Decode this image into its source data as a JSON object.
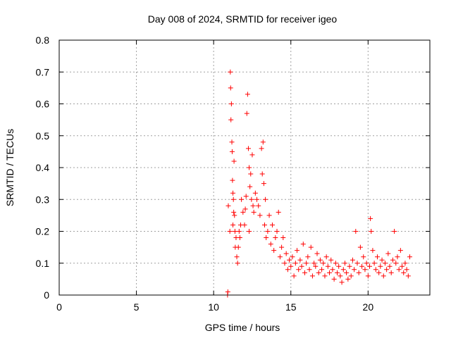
{
  "chart_data": {
    "type": "scatter",
    "title": "Day 008 of 2024, SRMTID for receiver igeo",
    "xlabel": "GPS time / hours",
    "ylabel": "SRMTID / TECUs",
    "xlim": [
      0,
      24
    ],
    "ylim": [
      0,
      0.8
    ],
    "xticks": [
      0,
      5,
      10,
      15,
      20
    ],
    "yticks": [
      0,
      0.1,
      0.2,
      0.3,
      0.4,
      0.5,
      0.6,
      0.7,
      0.8
    ],
    "grid": true,
    "marker": "+",
    "colors": {
      "series": "#ff0000",
      "grid": "#a0a0a0",
      "axis": "#000000"
    },
    "series": [
      {
        "name": "SRMTID",
        "x": [
          10.9,
          10.92,
          10.95,
          11.05,
          11.08,
          11.1,
          11.12,
          11.15,
          11.18,
          11.2,
          11.22,
          11.25,
          11.25,
          11.28,
          11.3,
          11.32,
          11.35,
          11.38,
          11.4,
          11.45,
          11.5,
          11.55,
          11.6,
          11.65,
          11.7,
          11.75,
          11.8,
          11.9,
          12.0,
          12.05,
          12.1,
          12.15,
          12.2,
          12.25,
          12.3,
          12.3,
          12.35,
          12.4,
          12.45,
          12.5,
          12.55,
          12.6,
          12.7,
          12.8,
          12.9,
          13.0,
          13.1,
          13.15,
          13.2,
          13.25,
          13.3,
          13.35,
          13.4,
          13.5,
          13.6,
          13.7,
          13.8,
          13.9,
          14.0,
          14.1,
          14.2,
          14.3,
          14.4,
          14.5,
          14.6,
          14.7,
          14.8,
          14.9,
          15.0,
          15.1,
          15.2,
          15.3,
          15.4,
          15.5,
          15.6,
          15.7,
          15.8,
          15.9,
          16.0,
          16.1,
          16.2,
          16.3,
          16.4,
          16.5,
          16.6,
          16.7,
          16.8,
          16.9,
          17.0,
          17.1,
          17.2,
          17.3,
          17.4,
          17.5,
          17.6,
          17.7,
          17.8,
          17.9,
          18.0,
          18.1,
          18.2,
          18.3,
          18.4,
          18.5,
          18.6,
          18.7,
          18.8,
          18.9,
          19.0,
          19.1,
          19.2,
          19.3,
          19.4,
          19.5,
          19.6,
          19.7,
          19.8,
          19.9,
          20.0,
          20.1,
          20.15,
          20.2,
          20.3,
          20.4,
          20.5,
          20.6,
          20.7,
          20.8,
          20.9,
          21.0,
          21.1,
          21.2,
          21.3,
          21.4,
          21.5,
          21.6,
          21.7,
          21.8,
          21.9,
          22.0,
          22.1,
          22.2,
          22.3,
          22.4,
          22.5,
          22.6,
          22.7
        ],
        "y": [
          0.0,
          0.01,
          0.28,
          0.2,
          0.7,
          0.65,
          0.55,
          0.6,
          0.48,
          0.45,
          0.36,
          0.32,
          0.22,
          0.3,
          0.26,
          0.42,
          0.25,
          0.2,
          0.15,
          0.18,
          0.12,
          0.1,
          0.15,
          0.2,
          0.18,
          0.22,
          0.3,
          0.26,
          0.22,
          0.27,
          0.31,
          0.57,
          0.63,
          0.46,
          0.4,
          0.2,
          0.34,
          0.38,
          0.3,
          0.44,
          0.28,
          0.26,
          0.32,
          0.3,
          0.28,
          0.25,
          0.46,
          0.38,
          0.48,
          0.35,
          0.22,
          0.3,
          0.18,
          0.2,
          0.25,
          0.16,
          0.22,
          0.14,
          0.18,
          0.2,
          0.26,
          0.12,
          0.15,
          0.18,
          0.1,
          0.13,
          0.08,
          0.11,
          0.09,
          0.12,
          0.06,
          0.1,
          0.14,
          0.08,
          0.11,
          0.09,
          0.16,
          0.07,
          0.1,
          0.12,
          0.08,
          0.15,
          0.06,
          0.1,
          0.09,
          0.13,
          0.07,
          0.11,
          0.08,
          0.1,
          0.06,
          0.12,
          0.09,
          0.07,
          0.11,
          0.08,
          0.05,
          0.1,
          0.07,
          0.09,
          0.06,
          0.04,
          0.08,
          0.1,
          0.07,
          0.05,
          0.09,
          0.06,
          0.11,
          0.08,
          0.2,
          0.1,
          0.07,
          0.15,
          0.09,
          0.12,
          0.08,
          0.1,
          0.06,
          0.09,
          0.24,
          0.2,
          0.14,
          0.1,
          0.08,
          0.12,
          0.07,
          0.09,
          0.11,
          0.06,
          0.1,
          0.08,
          0.13,
          0.09,
          0.07,
          0.11,
          0.2,
          0.1,
          0.12,
          0.08,
          0.14,
          0.09,
          0.07,
          0.1,
          0.08,
          0.06,
          0.12
        ]
      }
    ]
  }
}
